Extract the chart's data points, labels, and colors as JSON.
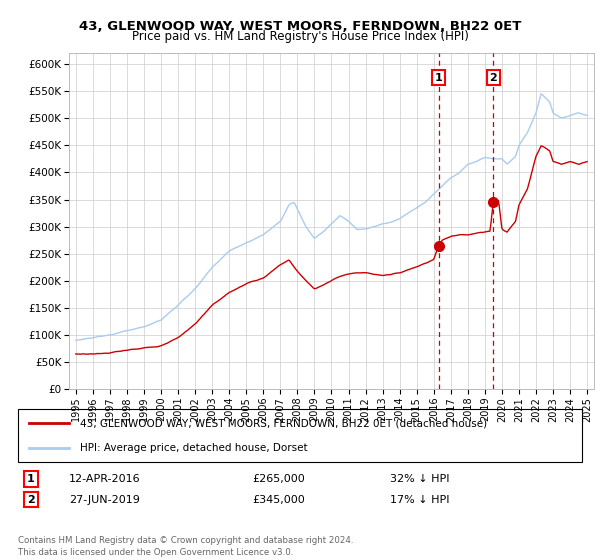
{
  "title": "43, GLENWOOD WAY, WEST MOORS, FERNDOWN, BH22 0ET",
  "subtitle": "Price paid vs. HM Land Registry's House Price Index (HPI)",
  "ylabel_ticks": [
    "£0",
    "£50K",
    "£100K",
    "£150K",
    "£200K",
    "£250K",
    "£300K",
    "£350K",
    "£400K",
    "£450K",
    "£500K",
    "£550K",
    "£600K"
  ],
  "ytick_values": [
    0,
    50000,
    100000,
    150000,
    200000,
    250000,
    300000,
    350000,
    400000,
    450000,
    500000,
    550000,
    600000
  ],
  "ylim": [
    0,
    620000
  ],
  "xlim_start": 1994.6,
  "xlim_end": 2025.4,
  "sale1_x": 2016.28,
  "sale1_y": 265000,
  "sale2_x": 2019.49,
  "sale2_y": 345000,
  "sale1_label": "1",
  "sale2_label": "2",
  "sale1_date": "12-APR-2016",
  "sale1_price": "£265,000",
  "sale1_hpi": "32% ↓ HPI",
  "sale2_date": "27-JUN-2019",
  "sale2_price": "£345,000",
  "sale2_hpi": "17% ↓ HPI",
  "legend_house": "43, GLENWOOD WAY, WEST MOORS, FERNDOWN, BH22 0ET (detached house)",
  "legend_hpi": "HPI: Average price, detached house, Dorset",
  "footnote": "Contains HM Land Registry data © Crown copyright and database right 2024.\nThis data is licensed under the Open Government Licence v3.0.",
  "hpi_color": "#aaccee",
  "sale_color": "#CC0000",
  "bg_color": "#ffffff",
  "grid_color": "#cccccc"
}
